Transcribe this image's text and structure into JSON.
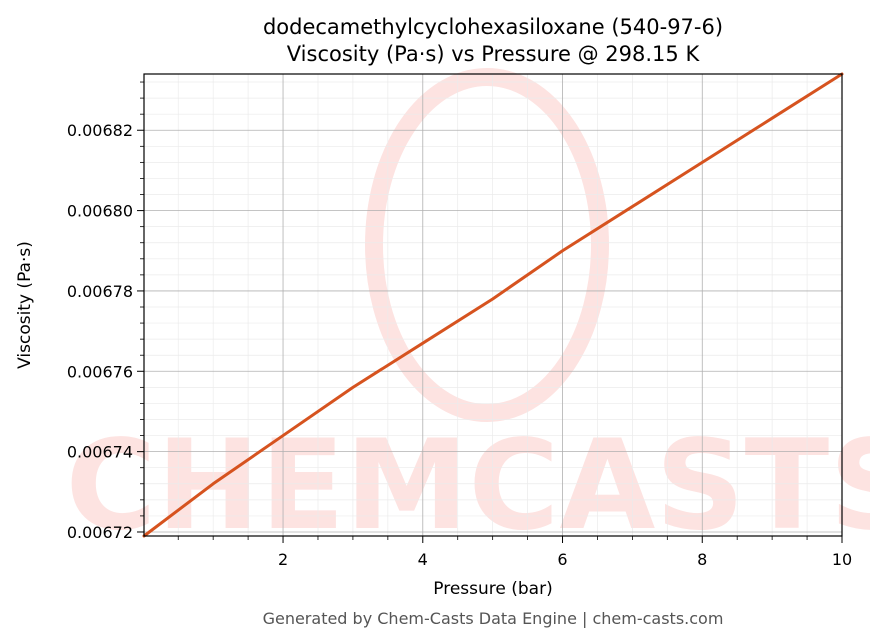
{
  "chart_data": {
    "type": "line",
    "title_line1": "dodecamethylcyclohexasiloxane (540-97-6)",
    "title_line2": "Viscosity (Pa·s) vs Pressure @ 298.15 K",
    "xlabel": "Pressure (bar)",
    "ylabel": "Viscosity (Pa·s)",
    "xlim": [
      0.01,
      10
    ],
    "ylim": [
      0.006719,
      0.006834
    ],
    "x_ticks": [
      2,
      4,
      6,
      8,
      10
    ],
    "x_tick_labels": [
      "2",
      "4",
      "6",
      "8",
      "10"
    ],
    "y_ticks": [
      0.00672,
      0.00674,
      0.00676,
      0.00678,
      0.0068,
      0.00682
    ],
    "y_tick_labels": [
      "0.00672",
      "0.00674",
      "0.00676",
      "0.00678",
      "0.00680",
      "0.00682"
    ],
    "grid": true,
    "series": [
      {
        "color": "#d6531f",
        "x": [
          0.01,
          1,
          2,
          3,
          4,
          5,
          6,
          7,
          8,
          9,
          10
        ],
        "y": [
          0.006719,
          0.006732,
          0.006744,
          0.006756,
          0.006767,
          0.006778,
          0.00679,
          0.006801,
          0.006812,
          0.006823,
          0.006834
        ]
      }
    ]
  },
  "watermark": {
    "text": "CHEMCASTS",
    "color": "#fde3e1"
  },
  "footer": "Generated by Chem-Casts Data Engine | chem-casts.com"
}
